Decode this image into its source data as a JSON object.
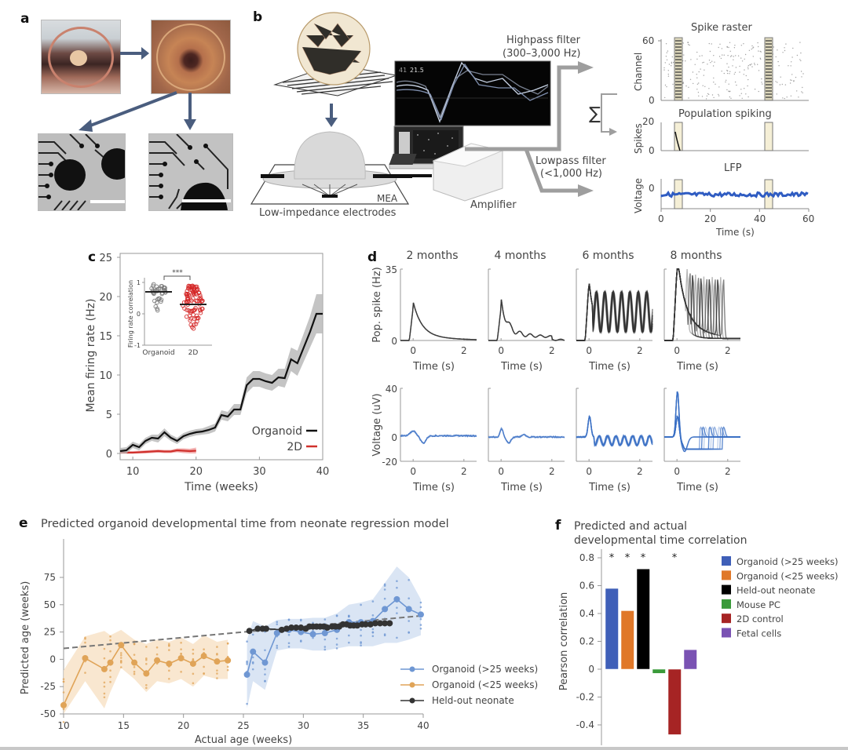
{
  "panels": {
    "a": {
      "label": "a",
      "images": [
        {
          "name": "organoid-in-dish-photo"
        },
        {
          "name": "organoid-on-mea-photo"
        },
        {
          "name": "mea-micrograph-left"
        },
        {
          "name": "mea-micrograph-right"
        }
      ]
    },
    "b": {
      "label": "b",
      "mea_label": "MEA",
      "electrodes_label": "Low-impedance electrodes",
      "amplifier_label": "Amplifier",
      "highpass_label": "Highpass filter",
      "highpass_range": "(300–3,000 Hz)",
      "lowpass_label": "Lowpass filter",
      "lowpass_range": "(<1,000 Hz)",
      "sum_symbol": "∑",
      "monitor_readout_1": "41",
      "monitor_readout_2": "21.5",
      "raster": {
        "title": "Spike raster",
        "ylabel": "Channel",
        "yticks": [
          "0",
          "60"
        ]
      },
      "population": {
        "title": "Population spiking",
        "ylabel": "Spikes",
        "yticks": [
          "0",
          "20"
        ]
      },
      "lfp": {
        "title": "LFP",
        "ylabel": "Voltage",
        "yticks": [
          "0"
        ],
        "xlabel": "Time (s)",
        "xticks": [
          "0",
          "20",
          "40",
          "60"
        ]
      }
    },
    "c": {
      "label": "c"
    },
    "d": {
      "label": "d"
    },
    "e": {
      "label": "e"
    },
    "f": {
      "label": "f"
    }
  },
  "chart_data": [
    {
      "id": "c",
      "type": "line",
      "title": "",
      "xlabel": "Time (weeks)",
      "ylabel": "Mean firing rate (Hz)",
      "xlim": [
        8,
        40
      ],
      "ylim": [
        0,
        25
      ],
      "xticks": [
        10,
        20,
        30,
        40
      ],
      "yticks": [
        0,
        5,
        10,
        15,
        20,
        25
      ],
      "legend": "bottom-right",
      "series": [
        {
          "name": "Organoid",
          "color": "#111111",
          "band_color": "#b5b5b5",
          "x": [
            8,
            9,
            10,
            11,
            12,
            13,
            14,
            15,
            16,
            17,
            18,
            19,
            20,
            21,
            22,
            23,
            24,
            25,
            26,
            27,
            28,
            29,
            30,
            31,
            32,
            33,
            34,
            35,
            36,
            37,
            38,
            39,
            40
          ],
          "y": [
            0.3,
            0.4,
            1.1,
            0.8,
            1.6,
            2.0,
            1.9,
            2.7,
            2.0,
            1.6,
            2.2,
            2.5,
            2.7,
            2.8,
            3.0,
            3.3,
            4.9,
            4.7,
            5.6,
            5.6,
            8.7,
            9.5,
            9.5,
            9.2,
            9.0,
            9.7,
            9.6,
            12.0,
            11.5,
            13.5,
            15.5,
            17.8,
            17.8
          ],
          "band": [
            0.4,
            0.4,
            0.4,
            0.4,
            0.4,
            0.4,
            0.5,
            0.5,
            0.4,
            0.4,
            0.4,
            0.4,
            0.4,
            0.4,
            0.5,
            0.5,
            0.6,
            0.6,
            0.7,
            0.7,
            1.0,
            1.0,
            1.0,
            1.0,
            1.0,
            1.1,
            1.2,
            1.5,
            1.6,
            1.8,
            2.0,
            2.5,
            2.5
          ]
        },
        {
          "name": "2D",
          "color": "#d0312d",
          "band_color": "#f0a0a0",
          "x": [
            8,
            9,
            10,
            11,
            12,
            13,
            14,
            15,
            16,
            17,
            18,
            19,
            20
          ],
          "y": [
            0.1,
            0.1,
            0.1,
            0.15,
            0.2,
            0.25,
            0.3,
            0.25,
            0.25,
            0.4,
            0.35,
            0.3,
            0.35
          ],
          "band": [
            0.2,
            0.2,
            0.2,
            0.2,
            0.2,
            0.2,
            0.2,
            0.2,
            0.2,
            0.25,
            0.3,
            0.3,
            0.4
          ]
        }
      ],
      "inset": {
        "type": "scatter",
        "ylabel": "Firing rate correlation",
        "categories": [
          "Organoid",
          "2D"
        ],
        "ylim": [
          -1,
          1
        ],
        "yticks": [
          -1,
          0,
          1
        ],
        "means": [
          0.7,
          0.3
        ],
        "significance": "***",
        "colors": [
          "#777777",
          "#d42525"
        ]
      }
    },
    {
      "id": "d",
      "type": "line",
      "columns": [
        "2 months",
        "4 months",
        "6 months",
        "8 months"
      ],
      "top": {
        "ylabel": "Pop. spike (Hz)",
        "ylim": [
          0,
          35
        ],
        "yticks": [
          0,
          35
        ],
        "xlabel": "Time (s)",
        "xlim": [
          -0.5,
          2.5
        ],
        "xticks": [
          0,
          2
        ],
        "color": "#333333"
      },
      "bottom": {
        "ylabel": "Voltage (uV)",
        "ylim": [
          -20,
          40
        ],
        "yticks": [
          -20,
          0,
          40
        ],
        "xlabel": "Time (s)",
        "xlim": [
          -0.5,
          2.5
        ],
        "xticks": [
          0,
          2
        ],
        "color": "#3a6fc4"
      },
      "peak_pop_spike_hz": [
        16,
        16,
        29,
        35
      ],
      "peak_voltage_uv": [
        4,
        7,
        17,
        38
      ],
      "oscillation_period_s": [
        null,
        0.4,
        0.32,
        0.35
      ]
    },
    {
      "id": "e",
      "type": "line",
      "title": "Predicted organoid developmental time from neonate regression model",
      "xlabel": "Actual age (weeks)",
      "ylabel": "Predicted age (weeks)",
      "xlim": [
        10,
        40
      ],
      "ylim": [
        -50,
        100
      ],
      "xticks": [
        10,
        15,
        20,
        25,
        30,
        35,
        40
      ],
      "yticks": [
        -50,
        -25,
        0,
        25,
        50,
        75
      ],
      "legend": "bottom-right",
      "trend_line": {
        "style": "dashed",
        "color": "#777777",
        "x": [
          10,
          40
        ],
        "y": [
          10,
          40
        ]
      },
      "series": [
        {
          "name": "Organoid (>25 weeks)",
          "color": "#6f97d3",
          "band_color": "#d3e0f2",
          "x": [
            25.3,
            25.8,
            26.8,
            27.8,
            28.8,
            29.8,
            30.8,
            31.8,
            32.8,
            33.8,
            34.8,
            35.8,
            36.8,
            37.8,
            38.8,
            39.8
          ],
          "y": [
            -14,
            7,
            -3,
            24,
            27,
            25,
            23,
            24,
            27,
            34,
            34,
            35,
            46,
            55,
            46,
            41
          ],
          "band_lo": [
            -45,
            -20,
            -28,
            8,
            10,
            10,
            8,
            8,
            10,
            12,
            12,
            12,
            15,
            15,
            18,
            22
          ],
          "band_hi": [
            18,
            35,
            30,
            36,
            37,
            37,
            38,
            38,
            42,
            50,
            52,
            55,
            70,
            85,
            75,
            55
          ]
        },
        {
          "name": "Organoid (<25 weeks)",
          "color": "#e0a458",
          "band_color": "#f8e3c8",
          "x": [
            10,
            11.8,
            13.4,
            13.9,
            14.8,
            15.9,
            16.9,
            17.8,
            18.8,
            19.8,
            20.8,
            21.7,
            22.8,
            23.7
          ],
          "y": [
            -42,
            1,
            -9,
            -3,
            13,
            -3,
            -13,
            -1,
            -4,
            1,
            -4,
            3,
            -2,
            -1
          ],
          "band_lo": [
            -60,
            -20,
            -45,
            -30,
            -8,
            -18,
            -30,
            -20,
            -22,
            -18,
            -25,
            -15,
            -18,
            -18
          ],
          "band_hi": [
            -10,
            21,
            26,
            22,
            27,
            18,
            14,
            18,
            16,
            20,
            14,
            22,
            16,
            18
          ]
        },
        {
          "name": "Held-out neonate",
          "color": "#333333",
          "x": [
            25.5,
            26.2,
            26.6,
            26.9,
            28.2,
            28.6,
            29.0,
            29.4,
            29.8,
            30.2,
            30.5,
            30.8,
            31.1,
            31.4,
            31.7,
            32.0,
            32.4,
            32.7,
            33.0,
            33.3,
            33.6,
            33.9,
            34.2,
            34.5,
            34.9,
            35.2,
            35.6,
            36.0,
            36.4,
            36.8,
            37.2
          ],
          "y": [
            26,
            28,
            28,
            28,
            27,
            28,
            29,
            29,
            29,
            28,
            30,
            30,
            30,
            30,
            30,
            29,
            30,
            30,
            30,
            32,
            32,
            31,
            31,
            31,
            32,
            32,
            32,
            33,
            33,
            33,
            33
          ]
        }
      ]
    },
    {
      "id": "f",
      "type": "bar",
      "title": "Predicted and actual developmental time correlation",
      "xlabel": "",
      "ylabel": "Pearson correlation",
      "ylim": [
        -0.5,
        0.85
      ],
      "yticks": [
        -0.4,
        -0.2,
        0,
        0.2,
        0.4,
        0.6,
        0.8
      ],
      "legend": "right",
      "categories": [
        "Organoid (>25 weeks)",
        "Organoid (<25 weeks)",
        "Held-out neonate",
        "Mouse PC",
        "2D control",
        "Fetal cells"
      ],
      "values": [
        0.58,
        0.42,
        0.72,
        -0.03,
        -0.47,
        0.14
      ],
      "colors": [
        "#3f5fb8",
        "#e07829",
        "#000000",
        "#3a9a3a",
        "#a62424",
        "#7a52b3"
      ],
      "significant": [
        true,
        true,
        true,
        false,
        true,
        false
      ],
      "significance_mark": "*"
    }
  ]
}
